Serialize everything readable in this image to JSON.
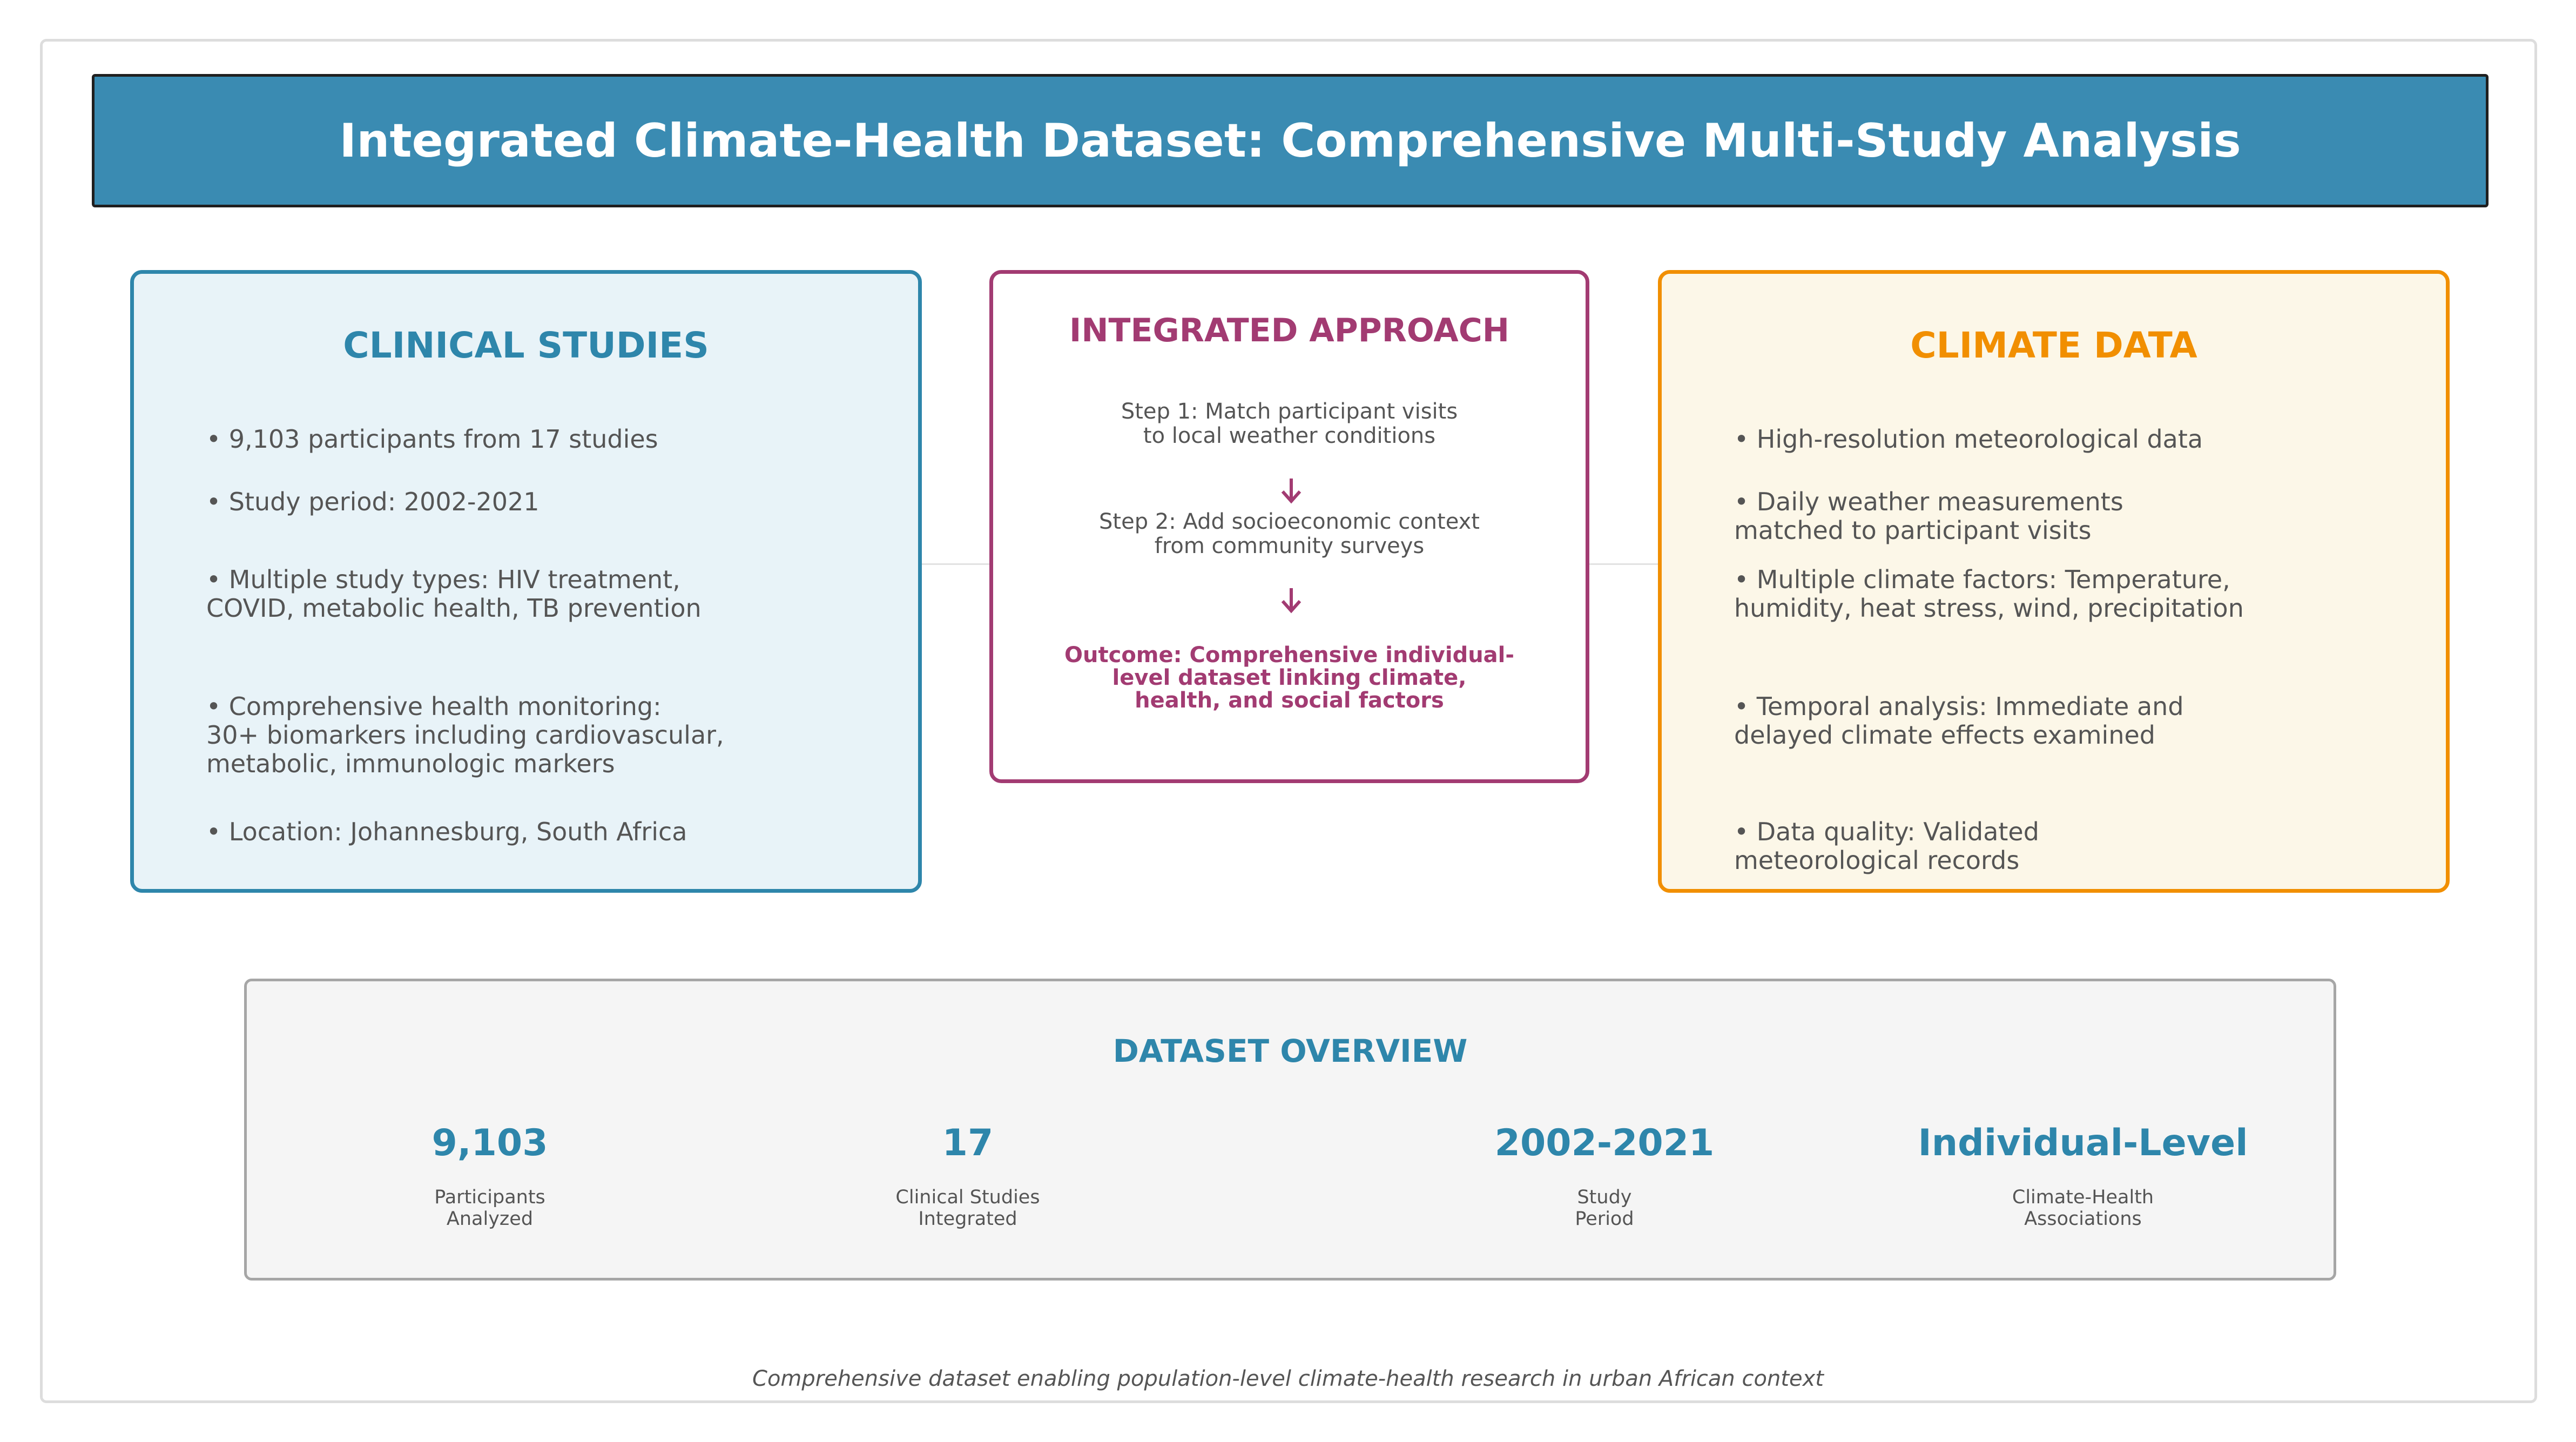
{
  "title": "Integrated Climate-Health Dataset: Comprehensive Multi-Study Analysis",
  "clinical": {
    "heading": "CLINICAL STUDIES",
    "bullets": [
      "• 9,103 participants from 17 studies",
      "• Study period: 2002-2021",
      "• Multiple study types: HIV treatment,\nCOVID, metabolic health, TB prevention",
      "• Comprehensive health monitoring:\n30+ biomarkers including cardiovascular,\nmetabolic, immunologic markers",
      "• Location: Johannesburg, South Africa"
    ]
  },
  "integrated": {
    "heading": "INTEGRATED APPROACH",
    "step1": "Step 1: Match participant visits\nto local weather conditions",
    "step2": "Step 2: Add socioeconomic context\nfrom community surveys",
    "outcome": "Outcome: Comprehensive individual-\nlevel dataset linking climate,\nhealth, and social factors",
    "colors": {
      "accent": "#a23b72"
    }
  },
  "climate": {
    "heading": "CLIMATE DATA",
    "bullets": [
      "• High-resolution meteorological data",
      "• Daily weather measurements\nmatched to participant visits",
      "• Multiple climate factors: Temperature,\nhumidity, heat stress, wind, precipitation",
      "• Temporal analysis: Immediate and\ndelayed climate effects examined",
      "• Data quality: Validated\nmeteorological records"
    ]
  },
  "overview": {
    "heading": "DATASET OVERVIEW",
    "stats": [
      {
        "value": "9,103",
        "label": "Participants\nAnalyzed"
      },
      {
        "value": "17",
        "label": "Clinical Studies\nIntegrated"
      },
      {
        "value": "2002-2021",
        "label": "Study\nPeriod"
      },
      {
        "value": "Individual-Level",
        "label": "Climate-Health\nAssociations"
      }
    ]
  },
  "footer": "Comprehensive dataset enabling population-level climate-health research in urban African context",
  "colors": {
    "title_bar": "#3a8bb2",
    "clinical": "#2e86ab",
    "climate": "#f18f01",
    "integrated": "#a23b72"
  },
  "icons": [
    "down-arrow-icon",
    "down-arrow-icon"
  ]
}
